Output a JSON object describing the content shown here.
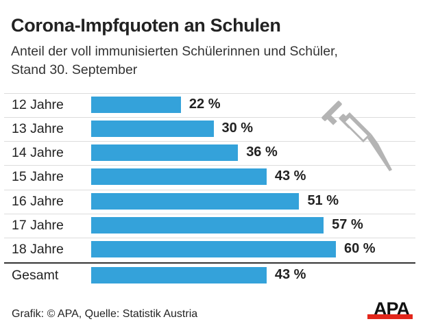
{
  "title": "Corona-Impfquoten an Schulen",
  "subtitle_lines": [
    "Anteil der voll immunisierten Schülerinnen und Schüler,",
    "Stand 30. September"
  ],
  "footer": "Grafik: © APA, Quelle: Statistik Austria",
  "logo_text": "APA",
  "icon": "syringe-icon",
  "colors": {
    "bar": "#34a2da",
    "logo_red": "#e3261b",
    "icon": "#b4b4b4"
  },
  "chart_data": {
    "type": "bar",
    "orientation": "horizontal",
    "categories": [
      "12 Jahre",
      "13 Jahre",
      "14 Jahre",
      "15 Jahre",
      "16 Jahre",
      "17 Jahre",
      "18 Jahre",
      "Gesamt"
    ],
    "values": [
      22,
      30,
      36,
      43,
      51,
      57,
      60,
      43
    ],
    "labels": [
      "22 %",
      "30 %",
      "36 %",
      "43 %",
      "51 %",
      "57 %",
      "60 %",
      "43 %"
    ],
    "unit": "%",
    "xlim": [
      0,
      100
    ],
    "grid": false,
    "legend": "none"
  }
}
